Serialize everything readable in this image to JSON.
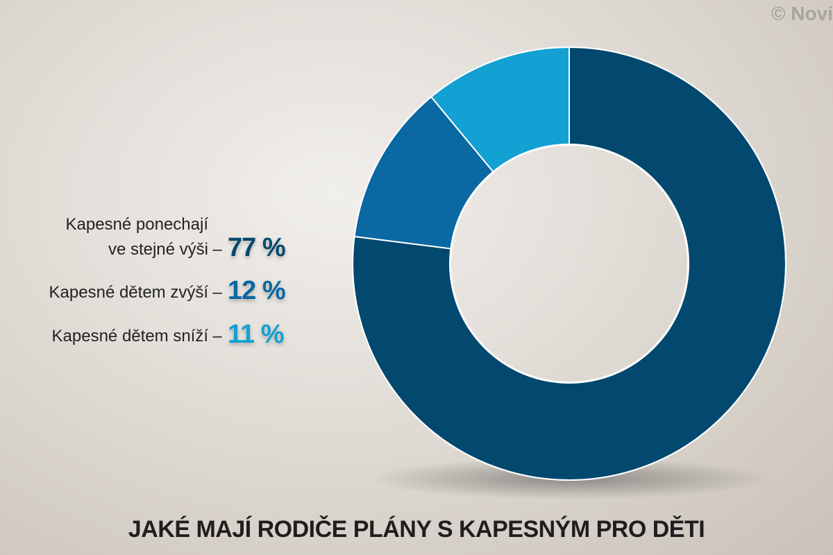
{
  "chart_data": {
    "type": "donut",
    "title": "JAKÉ MAJÍ RODIČE PLÁNY S KAPESNÝM PRO DĚTI",
    "source": "© Novi",
    "categories": [
      "Kapesné ponechají\nve stejné výši",
      "Kapesné dětem zvýší",
      "Kapesné dětem sníží"
    ],
    "separator": "–",
    "values": [
      77,
      12,
      11
    ],
    "value_labels": [
      "77 %",
      "12 %",
      "11 %"
    ],
    "colors": [
      "#02486f",
      "#0a68a2",
      "#12a1d2"
    ]
  }
}
